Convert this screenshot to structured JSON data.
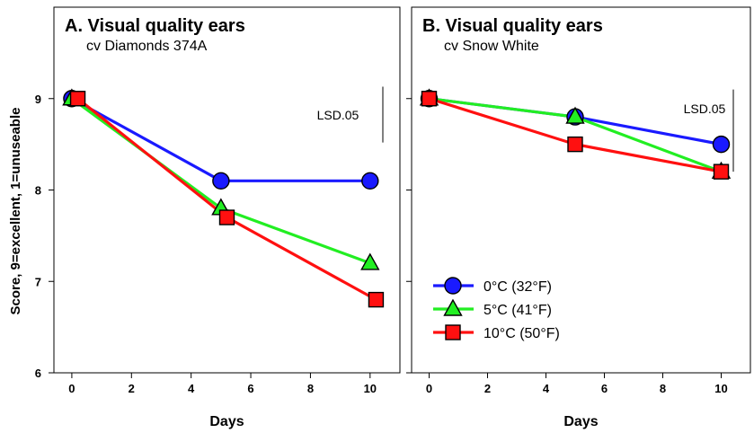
{
  "shared_ylabel": "Score, 9=excellent, 1=unuseable",
  "legend": [
    {
      "label": "0°C  (32°F)",
      "color": "#1a1aff",
      "marker": "circle"
    },
    {
      "label": "5°C  (41°F)",
      "color": "#22ee22",
      "marker": "triangle"
    },
    {
      "label": "10°C (50°F)",
      "color": "#ff1010",
      "marker": "square"
    }
  ],
  "chart_data": [
    {
      "type": "line",
      "title": "A.  Visual quality ears",
      "subtitle": "cv Diamonds 374A",
      "xlabel": "Days",
      "ylabel": "Score, 9=excellent, 1=unuseable",
      "xlim": [
        -0.6,
        11
      ],
      "ylim": [
        6,
        10
      ],
      "xticks": [
        0,
        2,
        4,
        6,
        8,
        10
      ],
      "yticks": [
        6,
        7,
        8,
        9
      ],
      "lsd_label": "LSD.05",
      "lsd_range": [
        8.52,
        9.13
      ],
      "series": [
        {
          "name": "0°C  (32°F)",
          "color": "#1a1aff",
          "marker": "circle",
          "points": [
            [
              0,
              9.0
            ],
            [
              5,
              8.1
            ],
            [
              10,
              8.1
            ]
          ]
        },
        {
          "name": "5°C  (41°F)",
          "color": "#22ee22",
          "marker": "triangle",
          "points": [
            [
              0,
              9.0
            ],
            [
              5,
              7.8
            ],
            [
              10,
              7.2
            ]
          ]
        },
        {
          "name": "10°C (50°F)",
          "color": "#ff1010",
          "marker": "square",
          "points": [
            [
              0.2,
              9.0
            ],
            [
              5.2,
              7.7
            ],
            [
              10.2,
              6.8
            ]
          ]
        }
      ]
    },
    {
      "type": "line",
      "title": "B.  Visual quality ears",
      "subtitle": "cv Snow White",
      "xlabel": "Days",
      "xlim": [
        -0.6,
        11
      ],
      "ylim": [
        6,
        10
      ],
      "xticks": [
        0,
        2,
        4,
        6,
        8,
        10
      ],
      "lsd_label": "LSD.05",
      "lsd_range": [
        8.2,
        9.1
      ],
      "series": [
        {
          "name": "0°C  (32°F)",
          "color": "#1a1aff",
          "marker": "circle",
          "points": [
            [
              0,
              9.0
            ],
            [
              5,
              8.8
            ],
            [
              10,
              8.5
            ]
          ]
        },
        {
          "name": "5°C  (41°F)",
          "color": "#22ee22",
          "marker": "triangle",
          "points": [
            [
              0,
              9.0
            ],
            [
              5,
              8.8
            ],
            [
              10,
              8.2
            ]
          ]
        },
        {
          "name": "10°C (50°F)",
          "color": "#ff1010",
          "marker": "square",
          "points": [
            [
              0,
              9.0
            ],
            [
              5,
              8.5
            ],
            [
              10,
              8.2
            ]
          ]
        }
      ]
    }
  ]
}
